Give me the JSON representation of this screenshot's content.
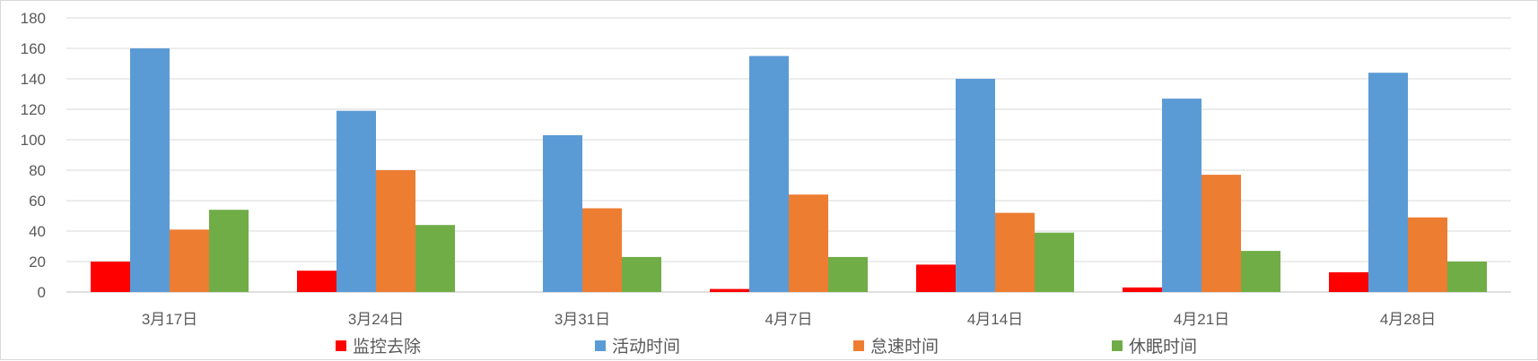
{
  "chart_data": {
    "type": "bar",
    "title": "",
    "xlabel": "",
    "ylabel": "",
    "ylim": [
      0,
      180
    ],
    "yticks": [
      0,
      20,
      40,
      60,
      80,
      100,
      120,
      140,
      160,
      180
    ],
    "grid": true,
    "legend_position": "bottom",
    "categories": [
      "3月17日",
      "3月24日",
      "3月31日",
      "4月7日",
      "4月14日",
      "4月21日",
      "4月28日"
    ],
    "series": [
      {
        "name": "监控去除",
        "color": "#ff0000",
        "values": [
          20,
          14,
          0,
          2,
          18,
          3,
          13
        ]
      },
      {
        "name": "活动时间",
        "color": "#5b9bd5",
        "values": [
          160,
          119,
          103,
          155,
          140,
          127,
          144
        ]
      },
      {
        "name": "怠速时间",
        "color": "#ed7d31",
        "values": [
          41,
          80,
          55,
          64,
          52,
          77,
          49
        ]
      },
      {
        "name": "休眠时间",
        "color": "#70ad47",
        "values": [
          54,
          44,
          23,
          23,
          39,
          27,
          20
        ]
      }
    ]
  }
}
